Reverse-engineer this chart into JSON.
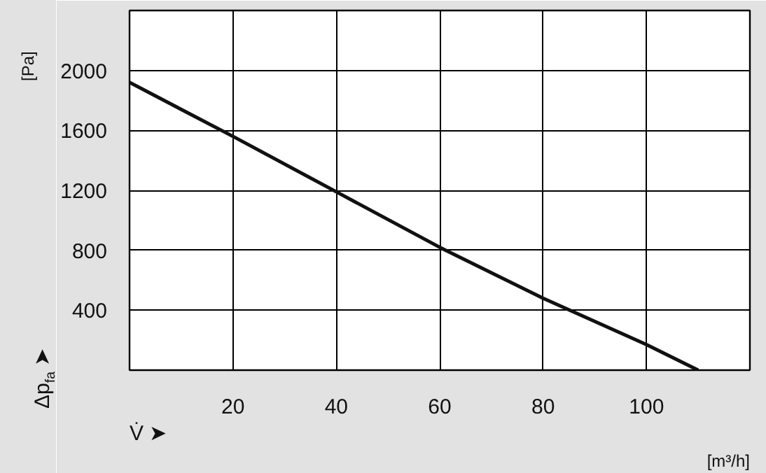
{
  "chart_data": {
    "type": "line",
    "xlabel": "V̇ ➤",
    "ylabel": "Δp$_{fa}$ ➤",
    "x": [
      0,
      20,
      40,
      60,
      80,
      100,
      110
    ],
    "series": [
      {
        "color": "#111111",
        "values": [
          1920,
          1560,
          1190,
          820,
          480,
          170,
          0
        ]
      }
    ],
    "xlim": [
      0,
      120
    ],
    "ylim": [
      0,
      2400
    ],
    "xticks": [
      20,
      40,
      60,
      80,
      100
    ],
    "yticks": [
      400,
      800,
      1200,
      1600,
      2000
    ],
    "grid": true,
    "marker": "none",
    "line_style": "solid",
    "annotations": [
      "[Pa]",
      "[m³/h]"
    ]
  }
}
